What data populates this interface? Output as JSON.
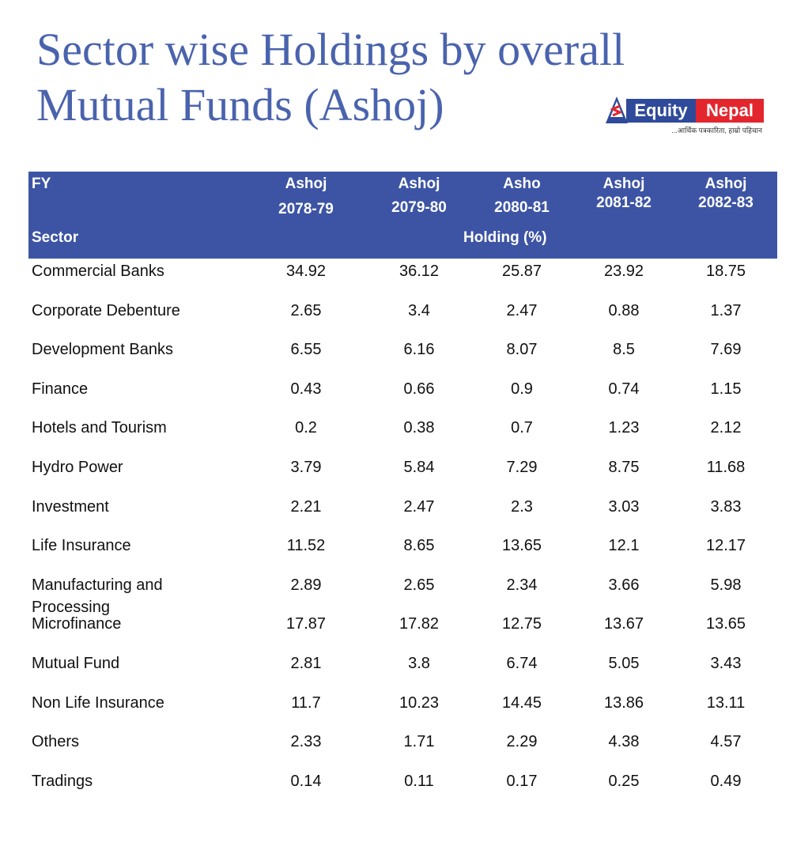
{
  "title": [
    "Sector wise Holdings by overall",
    "Mutual Funds (Ashoj)"
  ],
  "logo": {
    "left": "Equity",
    "right": "Nepal",
    "tagline": "...आर्थिक पत्रकारिता, हाम्रो पहिचान",
    "colors": {
      "blue": "#2f4a9a",
      "red": "#e3262d"
    }
  },
  "header": {
    "fy_label": "FY",
    "sector_label": "Sector",
    "holding_label": "Holding (%)",
    "columns": [
      {
        "month": "Ashoj",
        "year": "2078-79"
      },
      {
        "month": "Ashoj",
        "year": "2079-80"
      },
      {
        "month": "Asho",
        "year": "2080-81"
      },
      {
        "month": "Ashoj",
        "year": "2081-82"
      },
      {
        "month": "Ashoj",
        "year": "2082-83"
      }
    ]
  },
  "rows": [
    {
      "sector": "Commercial Banks",
      "values": [
        "34.92",
        "36.12",
        "25.87",
        "23.92",
        "18.75"
      ]
    },
    {
      "sector": "Corporate Debenture",
      "values": [
        "2.65",
        "3.4",
        "2.47",
        "0.88",
        "1.37"
      ]
    },
    {
      "sector": "Development Banks",
      "values": [
        "6.55",
        "6.16",
        "8.07",
        "8.5",
        "7.69"
      ]
    },
    {
      "sector": "Finance",
      "values": [
        "0.43",
        "0.66",
        "0.9",
        "0.74",
        "1.15"
      ]
    },
    {
      "sector": "Hotels and Tourism",
      "values": [
        "0.2",
        "0.38",
        "0.7",
        "1.23",
        "2.12"
      ]
    },
    {
      "sector": "Hydro Power",
      "values": [
        "3.79",
        "5.84",
        "7.29",
        "8.75",
        "11.68"
      ]
    },
    {
      "sector": "Investment",
      "values": [
        "2.21",
        "2.47",
        "2.3",
        "3.03",
        "3.83"
      ]
    },
    {
      "sector": "Life Insurance",
      "values": [
        "11.52",
        "8.65",
        "13.65",
        "12.1",
        "12.17"
      ]
    },
    {
      "sector": "Manufacturing and Processing",
      "values": [
        "2.89",
        "2.65",
        "2.34",
        "3.66",
        "5.98"
      ]
    },
    {
      "sector": "Microfinance",
      "values": [
        "17.87",
        "17.82",
        "12.75",
        "13.67",
        "13.65"
      ]
    },
    {
      "sector": "Mutual Fund",
      "values": [
        "2.81",
        "3.8",
        "6.74",
        "5.05",
        "3.43"
      ]
    },
    {
      "sector": "Non Life Insurance",
      "values": [
        "11.7",
        "10.23",
        "14.45",
        "13.86",
        "13.11"
      ]
    },
    {
      "sector": "Others",
      "values": [
        "2.33",
        "1.71",
        "2.29",
        "4.38",
        "4.57"
      ]
    },
    {
      "sector": "Tradings",
      "values": [
        "0.14",
        "0.11",
        "0.17",
        "0.25",
        "0.49"
      ]
    }
  ]
}
